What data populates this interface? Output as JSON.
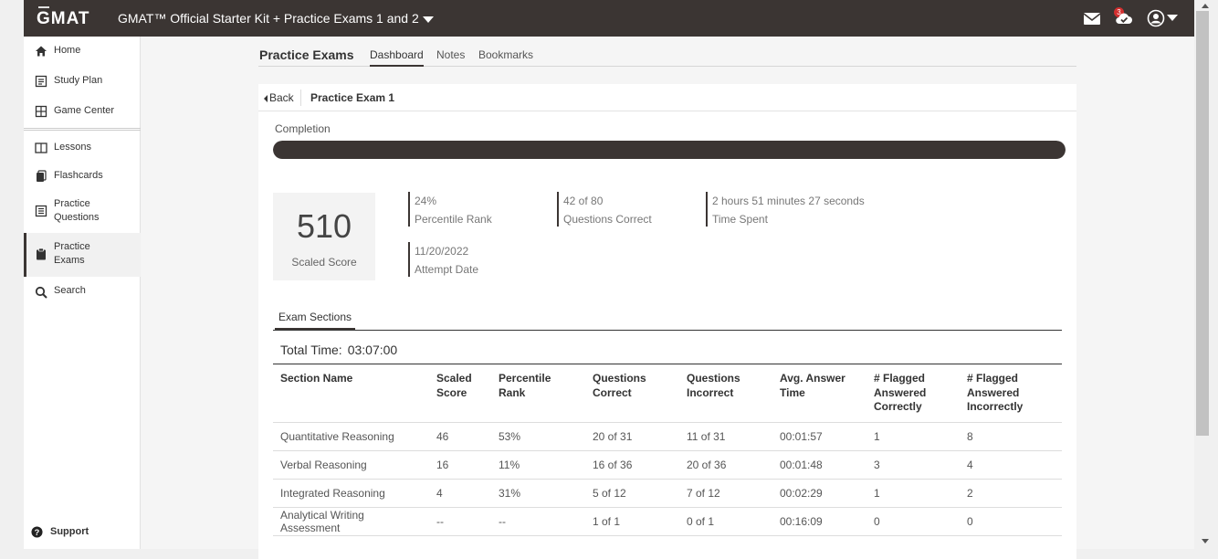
{
  "app": {
    "logo": "GMAT",
    "kit_title": "GMAT™ Official Starter Kit + Practice Exams 1 and 2",
    "mail_badge": "3"
  },
  "sidebar": {
    "items": [
      {
        "label": "Home",
        "icon": "home-icon"
      },
      {
        "label": "Study Plan",
        "icon": "study-plan-icon"
      },
      {
        "label": "Game Center",
        "icon": "game-center-icon"
      },
      {
        "label": "Lessons",
        "icon": "lessons-icon"
      },
      {
        "label": "Flashcards",
        "icon": "flashcards-icon"
      },
      {
        "label": "Practice Questions",
        "icon": "practice-questions-icon"
      },
      {
        "label": "Practice Exams",
        "icon": "clipboard-icon"
      },
      {
        "label": "Search",
        "icon": "search-icon"
      }
    ],
    "support": "Support"
  },
  "page": {
    "title": "Practice Exams",
    "tabs": [
      "Dashboard",
      "Notes",
      "Bookmarks"
    ],
    "active_tab": "Dashboard"
  },
  "exam": {
    "back": "Back",
    "name": "Practice Exam 1",
    "completion_label": "Completion",
    "completion_fraction": 1.0,
    "scaled_score": "510",
    "scaled_score_label": "Scaled Score",
    "stats": [
      {
        "value": "24%",
        "label": "Percentile Rank"
      },
      {
        "value": "42 of 80",
        "label": "Questions Correct"
      },
      {
        "value": "2 hours 51 minutes 27 seconds",
        "label": "Time Spent"
      },
      {
        "value": "11/20/2022",
        "label": "Attempt Date"
      }
    ]
  },
  "sections": {
    "tab": "Exam Sections",
    "total_time_label": "Total Time:",
    "total_time": "03:07:00",
    "columns": [
      "Section Name",
      "Scaled Score",
      "Percentile Rank",
      "Questions Correct",
      "Questions Incorrect",
      "Avg. Answer Time",
      "# Flagged Answered Correctly",
      "# Flagged Answered Incorrectly"
    ],
    "rows": [
      [
        "Quantitative Reasoning",
        "46",
        "53%",
        "20 of 31",
        "11 of 31",
        "00:01:57",
        "1",
        "8"
      ],
      [
        "Verbal Reasoning",
        "16",
        "11%",
        "16 of 36",
        "20 of 36",
        "00:01:48",
        "3",
        "4"
      ],
      [
        "Integrated Reasoning",
        "4",
        "31%",
        "5 of 12",
        "7 of 12",
        "00:02:29",
        "1",
        "2"
      ],
      [
        "Analytical Writing Assessment",
        "--",
        "--",
        "1 of 1",
        "0 of 1",
        "00:16:09",
        "0",
        "0"
      ]
    ]
  },
  "colors": {
    "topbar": "#3b3533",
    "progress": "#3b3533",
    "badge": "#d32f2f"
  }
}
